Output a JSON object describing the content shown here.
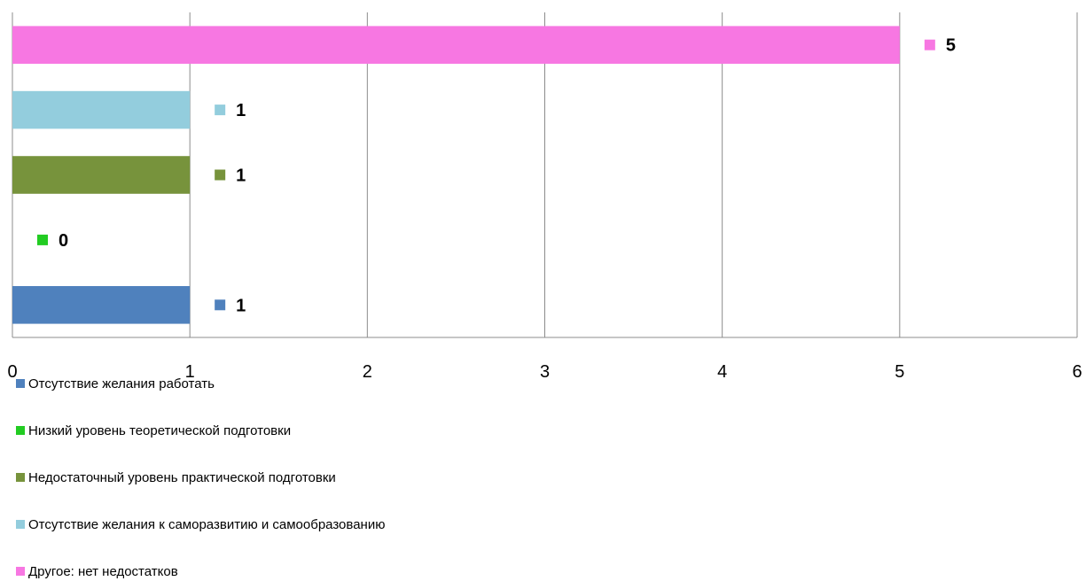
{
  "chart_data": {
    "type": "bar",
    "orientation": "horizontal",
    "categories": [
      "Отсутствие желания работать",
      "Низкий уровень теоретической подготовки",
      "Недостаточный уровень практической подготовки",
      "Отсутствие желания к саморазвитию и самообразованию",
      "Другое: нет недостатков"
    ],
    "values": [
      1,
      0,
      1,
      1,
      5
    ],
    "colors": [
      "#4f81bd",
      "#22cc22",
      "#77933c",
      "#93cddd",
      "#f777e2"
    ],
    "xlim": [
      0,
      6
    ],
    "xticks": [
      "0",
      "1",
      "2",
      "3",
      "4",
      "5",
      "6"
    ],
    "grid": "vertical",
    "data_labels": true,
    "legend_position": "bottom",
    "title": "",
    "xlabel": "",
    "ylabel": ""
  }
}
